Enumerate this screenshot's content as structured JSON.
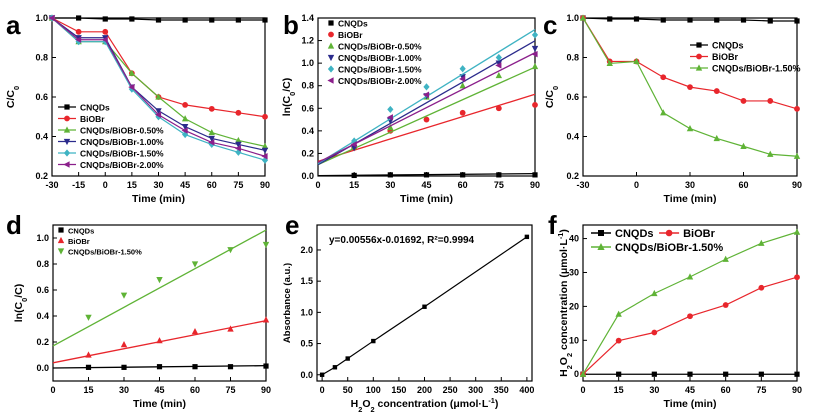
{
  "panels": [
    {
      "letter": "a",
      "chart_data": {
        "type": "line",
        "xlabel": "Time (min)",
        "ylabel": "C/C0",
        "xlim": [
          -30,
          90
        ],
        "ylim": [
          0.2,
          1.0
        ],
        "xticks": [
          -30,
          -15,
          0,
          15,
          30,
          45,
          60,
          75,
          90
        ],
        "yticks": [
          0.2,
          0.4,
          0.6,
          0.8,
          1.0
        ],
        "x": [
          -30,
          -15,
          0,
          15,
          30,
          45,
          60,
          75,
          90
        ],
        "legend_position": "bottom-left",
        "series": [
          {
            "name": "CNQDs",
            "color": "#000000",
            "marker": "square",
            "values": [
              1.0,
              1.0,
              0.995,
              0.995,
              0.99,
              0.99,
              0.99,
              0.99,
              0.99
            ]
          },
          {
            "name": "BiOBr",
            "color": "#e8262c",
            "marker": "circle",
            "values": [
              1.0,
              0.93,
              0.93,
              0.72,
              0.6,
              0.56,
              0.54,
              0.52,
              0.5
            ]
          },
          {
            "name": "CNQDs/BiOBr-0.50%",
            "color": "#5fb336",
            "marker": "triangle",
            "values": [
              1.0,
              0.88,
              0.88,
              0.72,
              0.6,
              0.49,
              0.42,
              0.38,
              0.35
            ]
          },
          {
            "name": "CNQDs/BiOBr-1.00%",
            "color": "#2b2b8c",
            "marker": "triangle-down",
            "values": [
              1.0,
              0.9,
              0.9,
              0.65,
              0.53,
              0.45,
              0.39,
              0.36,
              0.33
            ]
          },
          {
            "name": "CNQDs/BiOBr-1.50%",
            "color": "#3fb3c3",
            "marker": "diamond",
            "values": [
              1.0,
              0.88,
              0.88,
              0.64,
              0.5,
              0.41,
              0.36,
              0.32,
              0.28
            ]
          },
          {
            "name": "CNQDs/BiOBr-2.00%",
            "color": "#8b1f8b",
            "marker": "triangle-left",
            "values": [
              1.0,
              0.89,
              0.89,
              0.65,
              0.51,
              0.43,
              0.37,
              0.34,
              0.3
            ]
          }
        ]
      }
    },
    {
      "letter": "b",
      "chart_data": {
        "type": "scatter",
        "xlabel": "Time (min)",
        "ylabel": "ln(C0/C)",
        "xlim": [
          0,
          90
        ],
        "ylim": [
          0.0,
          1.4
        ],
        "xticks": [
          0,
          15,
          30,
          45,
          60,
          75,
          90
        ],
        "yticks": [
          0.0,
          0.2,
          0.4,
          0.6,
          0.8,
          1.0,
          1.2,
          1.4
        ],
        "x": [
          15,
          30,
          45,
          60,
          75,
          90
        ],
        "legend_position": "top-left",
        "series": [
          {
            "name": "CNQDs",
            "color": "#000000",
            "marker": "square",
            "values": [
              0.005,
              0.01,
              0.01,
              0.01,
              0.01,
              0.01
            ],
            "fit": [
              0.003,
              0.0002
            ]
          },
          {
            "name": "BiOBr",
            "color": "#e8262c",
            "marker": "circle",
            "values": [
              0.25,
              0.4,
              0.5,
              0.56,
              0.6,
              0.63
            ],
            "fit": [
              0.13,
              0.0066
            ]
          },
          {
            "name": "CNQDs/BiOBr-0.50%",
            "color": "#5fb336",
            "marker": "triangle",
            "values": [
              0.26,
              0.43,
              0.7,
              0.8,
              0.89,
              0.97
            ],
            "fit": [
              0.1,
              0.0096
            ]
          },
          {
            "name": "CNQDs/BiOBr-1.00%",
            "color": "#2b2b8c",
            "marker": "triangle-down",
            "values": [
              0.25,
              0.49,
              0.71,
              0.88,
              1.0,
              1.13
            ],
            "fit": [
              0.1,
              0.0122
            ]
          },
          {
            "name": "CNQDs/BiOBr-1.50%",
            "color": "#3fb3c3",
            "marker": "diamond",
            "values": [
              0.31,
              0.59,
              0.79,
              0.95,
              1.05,
              1.25
            ],
            "fit": [
              0.11,
              0.0132
            ]
          },
          {
            "name": "CNQDs/BiOBr-2.00%",
            "color": "#8b1f8b",
            "marker": "triangle-left",
            "values": [
              0.28,
              0.52,
              0.72,
              0.86,
              0.98,
              1.08
            ],
            "fit": [
              0.12,
              0.0108
            ]
          }
        ]
      }
    },
    {
      "letter": "c",
      "chart_data": {
        "type": "line",
        "xlabel": "Time (min)",
        "ylabel": "C/C0",
        "xlim": [
          -30,
          90
        ],
        "ylim": [
          0.2,
          1.0
        ],
        "xticks": [
          -30,
          0,
          30,
          60,
          90
        ],
        "yticks": [
          0.2,
          0.4,
          0.6,
          0.8,
          1.0
        ],
        "x": [
          -30,
          -15,
          0,
          15,
          30,
          45,
          60,
          75,
          90
        ],
        "legend_position": "top-right",
        "series": [
          {
            "name": "CNQDs",
            "color": "#000000",
            "marker": "square",
            "values": [
              1.0,
              0.995,
              0.995,
              0.99,
              0.99,
              0.99,
              0.99,
              0.985,
              0.985
            ]
          },
          {
            "name": "BiOBr",
            "color": "#e8262c",
            "marker": "circle",
            "values": [
              1.0,
              0.78,
              0.78,
              0.7,
              0.65,
              0.63,
              0.58,
              0.58,
              0.54
            ]
          },
          {
            "name": "CNQDs/BiOBr-1.50%",
            "color": "#5fb336",
            "marker": "triangle",
            "values": [
              1.0,
              0.77,
              0.78,
              0.52,
              0.44,
              0.39,
              0.35,
              0.31,
              0.3
            ]
          }
        ]
      }
    },
    {
      "letter": "d",
      "chart_data": {
        "type": "scatter",
        "xlabel": "Time (min)",
        "ylabel": "ln(C0/C)",
        "xlim": [
          0,
          90
        ],
        "ylim": [
          -0.1,
          1.1
        ],
        "xticks": [
          0,
          15,
          30,
          45,
          60,
          75,
          90
        ],
        "yticks": [
          0.0,
          0.2,
          0.4,
          0.6,
          0.8,
          1.0
        ],
        "x": [
          15,
          30,
          45,
          60,
          75,
          90
        ],
        "legend_position": "top-left",
        "series": [
          {
            "name": "CNQDs",
            "color": "#000000",
            "marker": "square",
            "values": [
              0.005,
              0.005,
              0.01,
              0.01,
              0.01,
              0.015
            ],
            "fit": [
              0.0,
              0.0002
            ]
          },
          {
            "name": "BiOBr",
            "color": "#e8262c",
            "marker": "triangle",
            "values": [
              0.1,
              0.18,
              0.21,
              0.28,
              0.3,
              0.37
            ],
            "fit": [
              0.04,
              0.0036
            ]
          },
          {
            "name": "CNQDs/BiOBr-1.50%",
            "color": "#5fb336",
            "marker": "triangle-down",
            "values": [
              0.39,
              0.56,
              0.68,
              0.8,
              0.91,
              0.95
            ],
            "fit": [
              0.17,
              0.0099
            ]
          }
        ]
      }
    },
    {
      "letter": "e",
      "chart_data": {
        "type": "line",
        "xlabel": "H2O2 concentration (μmol·L-1)",
        "ylabel": "Absorbance (a.u.)",
        "xlim": [
          -10,
          410
        ],
        "ylim": [
          -0.1,
          2.4
        ],
        "xticks": [
          0,
          50,
          100,
          150,
          200,
          250,
          300,
          350,
          400
        ],
        "yticks": [
          0.0,
          0.5,
          1.0,
          1.5,
          2.0
        ],
        "x": [
          0,
          25,
          50,
          100,
          200,
          400
        ],
        "annotation": "y=0.00556x-0.01692, R²=0.9994",
        "series": [
          {
            "color": "#000000",
            "marker": "square",
            "values": [
              0.0,
              0.12,
              0.26,
              0.54,
              1.09,
              2.21
            ]
          }
        ]
      }
    },
    {
      "letter": "f",
      "chart_data": {
        "type": "line",
        "xlabel": "Time (min)",
        "ylabel": "H2O2 concentration (μmol·L-1)",
        "xlim": [
          0,
          90
        ],
        "ylim": [
          -2,
          44
        ],
        "xticks": [
          0,
          15,
          30,
          45,
          60,
          75,
          90
        ],
        "yticks": [
          0,
          10,
          20,
          30,
          40
        ],
        "x": [
          0,
          15,
          30,
          45,
          60,
          75,
          90
        ],
        "legend_position": "top",
        "series": [
          {
            "name": "CNQDs",
            "color": "#000000",
            "marker": "square",
            "values": [
              0,
              0,
              0,
              0,
              0,
              0,
              0
            ]
          },
          {
            "name": "BiOBr",
            "color": "#e8262c",
            "marker": "circle",
            "values": [
              0,
              9.9,
              12.3,
              17.1,
              20.4,
              25.5,
              28.6
            ]
          },
          {
            "name": "CNQDs/BiOBr-1.50%",
            "color": "#5fb336",
            "marker": "triangle",
            "values": [
              0,
              17.7,
              23.8,
              28.7,
              33.9,
              38.6,
              41.9
            ]
          }
        ]
      }
    }
  ]
}
